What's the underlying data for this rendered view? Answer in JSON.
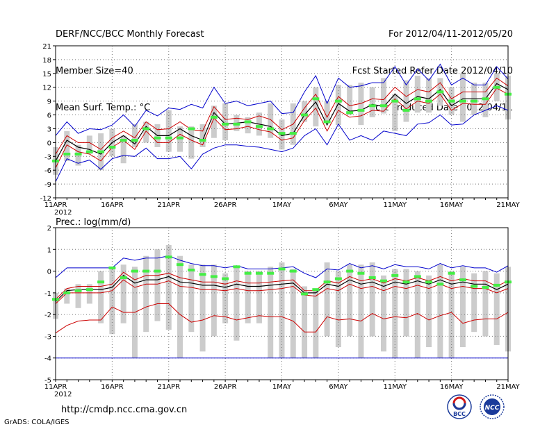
{
  "header": {
    "title": "DERF/NCC/BCC Monthly Forecast",
    "member_size": "Member Size=40",
    "variable1": "Mean Surf. Temp.: °C",
    "period": "For 2012/04/11-2012/05/20",
    "started": "Fcst Started Refer Date 2012/04/10",
    "produced": "Fcst Produced Date 2012/04/11"
  },
  "footer": {
    "url": "http://cmdp.ncc.cma.gov.cn",
    "grads": "GrADS: COLA/IGES",
    "logo_bcc": "BCC",
    "logo_ncc": "NCC"
  },
  "colors": {
    "envelope": "#0000cc",
    "spread": "#cc0000",
    "mean": "#000000",
    "obs": "#44ee44",
    "box": "#cccccc",
    "grid": "#777777"
  },
  "chart_data": [
    {
      "type": "line",
      "title": "Mean Surf. Temp.: °C",
      "xlabel": "",
      "ylabel": "",
      "ylim": [
        -12,
        21
      ],
      "yticks": [
        -12,
        -9,
        -6,
        -3,
        0,
        3,
        6,
        9,
        12,
        15,
        18,
        21
      ],
      "year_label": "2012",
      "x_labels": [
        {
          "day": 0,
          "label": "11APR"
        },
        {
          "day": 5,
          "label": "16APR"
        },
        {
          "day": 10,
          "label": "21APR"
        },
        {
          "day": 15,
          "label": "26APR"
        },
        {
          "day": 20,
          "label": "1MAY"
        },
        {
          "day": 25,
          "label": "6MAY"
        },
        {
          "day": 30,
          "label": "11MAY"
        },
        {
          "day": 35,
          "label": "16MAY"
        },
        {
          "day": 40,
          "label": "21MAY"
        }
      ],
      "series": [
        {
          "name": "max",
          "values": [
            1.5,
            4.5,
            2,
            3,
            2.8,
            3.8,
            6,
            3.5,
            7,
            5.8,
            7.5,
            7.2,
            8.3,
            7.5,
            12,
            8.5,
            9,
            8,
            8.5,
            9,
            6.3,
            6.5,
            11,
            14.5,
            8.5,
            14,
            12,
            12.3,
            13,
            13,
            16.5,
            12.5,
            16,
            13.5,
            17,
            12.5,
            14,
            12.5,
            12.5,
            16.5,
            13.8
          ]
        },
        {
          "name": "upper",
          "values": [
            -2.5,
            1.5,
            0,
            0,
            -1.5,
            1,
            2.5,
            1,
            4.5,
            2.8,
            3,
            4.5,
            2.8,
            2.5,
            7.8,
            5,
            5.3,
            5,
            5.8,
            5,
            2.8,
            4,
            7.5,
            10.5,
            5.5,
            10,
            8,
            8.5,
            9.5,
            9.3,
            12,
            10,
            11.5,
            11,
            13,
            9.5,
            11,
            11,
            11,
            14,
            12.3
          ]
        },
        {
          "name": "mean",
          "values": [
            -4,
            0.5,
            -1,
            -1.5,
            -2.5,
            0,
            1.5,
            -0.3,
            3.5,
            1.5,
            1.5,
            3,
            1.5,
            0.5,
            6.5,
            4,
            4.2,
            4.5,
            4,
            3.5,
            1.5,
            2,
            6,
            8.8,
            3.8,
            8.5,
            6.8,
            7,
            8.3,
            7.8,
            10.5,
            8.5,
            10,
            9.5,
            11.5,
            8,
            9.5,
            9.5,
            9.5,
            12.8,
            11.5
          ]
        },
        {
          "name": "lower",
          "values": [
            -5.5,
            -0.5,
            -2,
            -2.5,
            -4,
            -1,
            0.5,
            -1.5,
            2.5,
            0,
            0,
            1.8,
            0.5,
            -0.5,
            5.3,
            2.8,
            3,
            3.5,
            2.8,
            2.3,
            0.5,
            1,
            4.8,
            7.5,
            2.5,
            7,
            5.5,
            5.8,
            7,
            6.8,
            9.5,
            7.3,
            9,
            8.5,
            10.5,
            7,
            8.5,
            8.3,
            8.3,
            11.8,
            10.5
          ]
        },
        {
          "name": "min",
          "values": [
            -8.5,
            -3.5,
            -4.5,
            -3.8,
            -5.8,
            -3.5,
            -2.8,
            -3,
            -1.2,
            -3.5,
            -3.5,
            -3,
            -5.7,
            -2.5,
            -1.2,
            -0.5,
            -0.5,
            -0.8,
            -1,
            -1.5,
            -2,
            -1.2,
            1.5,
            3,
            -0.5,
            4,
            0.5,
            1.5,
            0.5,
            2.5,
            2,
            1.5,
            4,
            4.3,
            6,
            3.8,
            4,
            6,
            7,
            8,
            7
          ]
        },
        {
          "name": "box_lo",
          "values": [
            -7,
            -4,
            -5,
            -2.5,
            -6,
            -3,
            -4.5,
            -1,
            0,
            -1,
            -2,
            -2,
            -3.5,
            -1,
            1,
            0.5,
            2.5,
            2,
            1.5,
            1,
            -1.5,
            -0.5,
            4.5,
            3.5,
            4.5,
            3.8,
            6,
            3.8,
            5.5,
            6.3,
            2.5,
            4.5,
            6.5,
            6.5,
            8,
            6,
            4.5,
            6,
            5.5,
            9,
            5
          ]
        },
        {
          "name": "box_hi",
          "values": [
            -1,
            2.5,
            -0.5,
            1.5,
            2,
            3,
            1.5,
            4,
            4.5,
            4,
            7,
            3.5,
            3.5,
            4,
            8,
            8.5,
            6,
            5.5,
            6.5,
            8.5,
            5,
            8.5,
            9,
            12,
            9,
            12.5,
            12.5,
            13,
            12,
            14,
            10.5,
            13.5,
            14.5,
            14,
            14,
            12,
            15,
            13,
            13,
            15,
            14.5
          ]
        },
        {
          "name": "obs",
          "values": [
            -4,
            -2.5,
            -2.5,
            -2,
            -2,
            -1,
            0.5,
            0.5,
            3,
            1,
            1,
            1,
            3,
            0.5,
            5.5,
            4,
            4,
            4.5,
            3.5,
            3,
            2,
            2,
            6,
            9.5,
            4.5,
            9,
            6.5,
            7,
            8,
            8,
            9,
            7,
            9.5,
            9,
            11,
            9,
            9,
            9,
            9.5,
            12,
            10.5
          ]
        }
      ]
    },
    {
      "type": "line",
      "title": "Prec.: log(mm/d)",
      "xlabel": "",
      "ylabel": "",
      "ylim": [
        -5,
        2
      ],
      "yticks": [
        -5,
        -4,
        -3,
        -2,
        -1,
        0,
        1,
        2
      ],
      "year_label": "2012",
      "x_labels": [
        {
          "day": 0,
          "label": "11APR"
        },
        {
          "day": 5,
          "label": "16APR"
        },
        {
          "day": 10,
          "label": "21APR"
        },
        {
          "day": 15,
          "label": "26APR"
        },
        {
          "day": 20,
          "label": "1MAY"
        },
        {
          "day": 25,
          "label": "6MAY"
        },
        {
          "day": 30,
          "label": "11MAY"
        },
        {
          "day": 35,
          "label": "16MAY"
        },
        {
          "day": 40,
          "label": "21MAY"
        }
      ],
      "series": [
        {
          "name": "max",
          "values": [
            -0.3,
            0.15,
            0.15,
            0.15,
            0.15,
            0.15,
            0.6,
            0.5,
            0.6,
            0.6,
            0.7,
            0.5,
            0.35,
            0.25,
            0.25,
            0.15,
            0.25,
            0.1,
            0.1,
            0.1,
            0.15,
            0.2,
            -0.1,
            -0.3,
            0.1,
            0.05,
            0.35,
            0.15,
            0.25,
            0.1,
            0.3,
            0.2,
            0.2,
            0.1,
            0.35,
            0.15,
            0.25,
            0.15,
            0.15,
            -0.05,
            0.25
          ]
        },
        {
          "name": "upper",
          "values": [
            -1.3,
            -0.8,
            -0.7,
            -0.7,
            -0.7,
            -0.6,
            -0.05,
            -0.4,
            -0.2,
            -0.2,
            -0.1,
            -0.3,
            -0.4,
            -0.5,
            -0.5,
            -0.6,
            -0.45,
            -0.55,
            -0.55,
            -0.5,
            -0.45,
            -0.4,
            -0.9,
            -0.9,
            -0.45,
            -0.55,
            -0.25,
            -0.45,
            -0.35,
            -0.55,
            -0.35,
            -0.45,
            -0.3,
            -0.45,
            -0.25,
            -0.45,
            -0.35,
            -0.45,
            -0.45,
            -0.7,
            -0.45
          ]
        },
        {
          "name": "mean",
          "values": [
            -1.4,
            -0.9,
            -0.85,
            -0.85,
            -0.85,
            -0.75,
            -0.2,
            -0.55,
            -0.4,
            -0.4,
            -0.25,
            -0.5,
            -0.55,
            -0.65,
            -0.65,
            -0.75,
            -0.6,
            -0.7,
            -0.7,
            -0.65,
            -0.6,
            -0.55,
            -1.0,
            -1.0,
            -0.6,
            -0.7,
            -0.4,
            -0.6,
            -0.5,
            -0.7,
            -0.5,
            -0.6,
            -0.45,
            -0.6,
            -0.4,
            -0.6,
            -0.5,
            -0.6,
            -0.6,
            -0.85,
            -0.6
          ]
        },
        {
          "name": "lower",
          "values": [
            -1.5,
            -1.0,
            -1.0,
            -1.0,
            -1.0,
            -0.9,
            -0.4,
            -0.75,
            -0.6,
            -0.6,
            -0.45,
            -0.7,
            -0.75,
            -0.85,
            -0.85,
            -0.9,
            -0.8,
            -0.9,
            -0.9,
            -0.85,
            -0.8,
            -0.7,
            -1.1,
            -1.15,
            -0.8,
            -0.9,
            -0.6,
            -0.8,
            -0.7,
            -0.9,
            -0.7,
            -0.8,
            -0.65,
            -0.8,
            -0.6,
            -0.8,
            -0.7,
            -0.8,
            -0.8,
            -1.0,
            -0.8
          ]
        },
        {
          "name": "min_red",
          "values": [
            -2.85,
            -2.5,
            -2.3,
            -2.25,
            -2.25,
            -1.65,
            -1.9,
            -1.9,
            -1.65,
            -1.5,
            -1.5,
            -2.0,
            -2.35,
            -2.25,
            -2.05,
            -2.1,
            -2.25,
            -2.15,
            -2.05,
            -2.1,
            -2.1,
            -2.3,
            -2.8,
            -2.8,
            -2.1,
            -2.25,
            -2.2,
            -2.3,
            -1.95,
            -2.2,
            -2.1,
            -2.15,
            -1.95,
            -2.25,
            -2.05,
            -1.9,
            -2.4,
            -2.25,
            -2.2,
            -2.2,
            -1.9
          ]
        },
        {
          "name": "floor",
          "values": [
            -4,
            -4,
            -4,
            -4,
            -4,
            -4,
            -4,
            -4,
            -4,
            -4,
            -4,
            -4,
            -4,
            -4,
            -4,
            -4,
            -4,
            -4,
            -4,
            -4,
            -4,
            -4,
            -4,
            -4,
            -4,
            -4,
            -4,
            -4,
            -4,
            -4,
            -4,
            -4,
            -4,
            -4,
            -4,
            -4,
            -4,
            -4,
            -4,
            -4,
            -4
          ]
        },
        {
          "name": "box_lo",
          "values": [
            -2.2,
            -1.5,
            -1.7,
            -1.5,
            -2.4,
            -2.9,
            -2.4,
            -4.0,
            -2.8,
            -2.3,
            -2.7,
            -4.0,
            -2.8,
            -3.7,
            -3.0,
            -2.4,
            -3.2,
            -2.4,
            -2.4,
            -4.0,
            -4.0,
            -4.0,
            -4.0,
            -4.0,
            -3.0,
            -3.5,
            -3.0,
            -4.0,
            -3.0,
            -3.7,
            -4.0,
            -3.0,
            -4.0,
            -3.5,
            -4.0,
            -4.0,
            -3.5,
            -2.8,
            -3.0,
            -3.4,
            -3.7
          ]
        },
        {
          "name": "box_hi",
          "values": [
            -1.0,
            -0.8,
            -0.6,
            -0.6,
            0.0,
            0.1,
            0.3,
            0.2,
            0.7,
            1.0,
            1.2,
            0.7,
            0.3,
            0.3,
            0.3,
            -0.1,
            0.2,
            0.0,
            0.0,
            0.2,
            0.4,
            0.1,
            -0.7,
            -0.9,
            0.4,
            0.0,
            0.3,
            0.3,
            0.4,
            -0.2,
            0.1,
            0.1,
            0.0,
            -0.2,
            0.3,
            0.0,
            0.2,
            -0.1,
            0.0,
            -0.1,
            0.2
          ]
        },
        {
          "name": "obs",
          "values": [
            -1.3,
            -1.0,
            -0.9,
            -0.85,
            -0.5,
            0.15,
            -0.3,
            0.0,
            0.0,
            0.0,
            0.65,
            0.3,
            0.05,
            -0.15,
            -0.25,
            -0.35,
            0.2,
            -0.1,
            -0.1,
            -0.1,
            0.1,
            0.0,
            -1.05,
            -0.85,
            -0.5,
            -0.35,
            0.0,
            -0.1,
            -0.3,
            -0.45,
            -0.2,
            -0.5,
            -0.25,
            -0.5,
            -0.6,
            -0.1,
            -0.4,
            -0.7,
            -0.75,
            -0.65,
            -0.5
          ]
        }
      ]
    }
  ]
}
